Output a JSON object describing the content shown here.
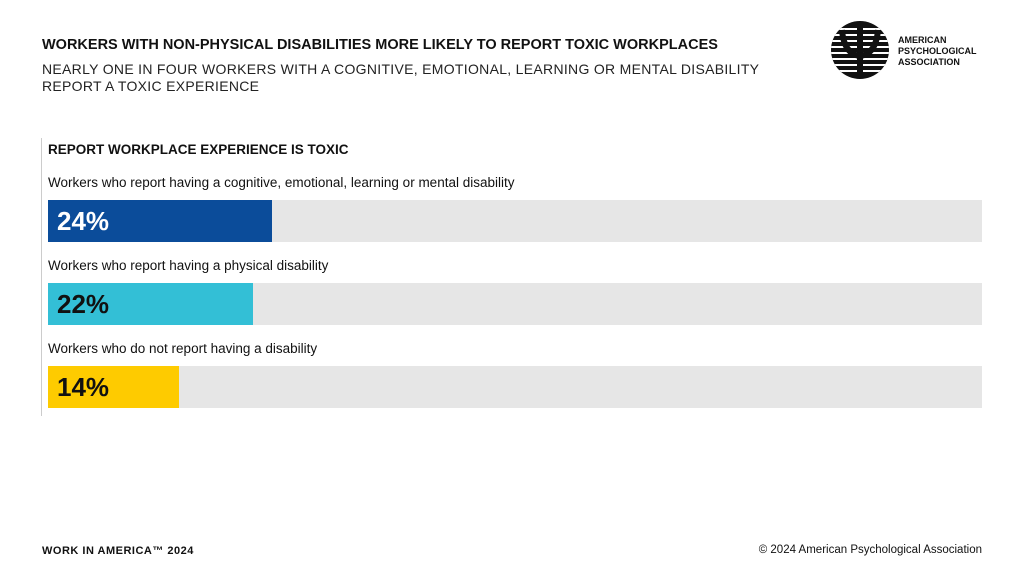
{
  "chart_data": {
    "type": "bar",
    "title": "WORKERS WITH NON-PHYSICAL DISABILITIES MORE LIKELY TO REPORT TOXIC WORKPLACES",
    "subtitle": "NEARLY ONE IN FOUR WORKERS WITH A COGNITIVE, EMOTIONAL, LEARNING OR MENTAL DISABILITY REPORT A TOXIC EXPERIENCE",
    "chart_label": "REPORT WORKPLACE EXPERIENCE IS TOXIC",
    "categories": [
      "Workers who report having a cognitive, emotional, learning or mental disability",
      "Workers who report having a physical disability",
      "Workers who do not report having a disability"
    ],
    "values": [
      24,
      22,
      14
    ],
    "value_labels": [
      "24%",
      "22%",
      "14%"
    ],
    "colors": [
      "#0b4c9a",
      "#33bfd6",
      "#fecb00"
    ],
    "track_color": "#e6e6e6",
    "xlim": [
      0,
      100
    ]
  },
  "logo": {
    "lines": [
      "AMERICAN",
      "PSYCHOLOGICAL",
      "ASSOCIATION"
    ]
  },
  "footer": {
    "left": "WORK IN AMERICA™ 2024",
    "right": "© 2024 American Psychological Association"
  }
}
